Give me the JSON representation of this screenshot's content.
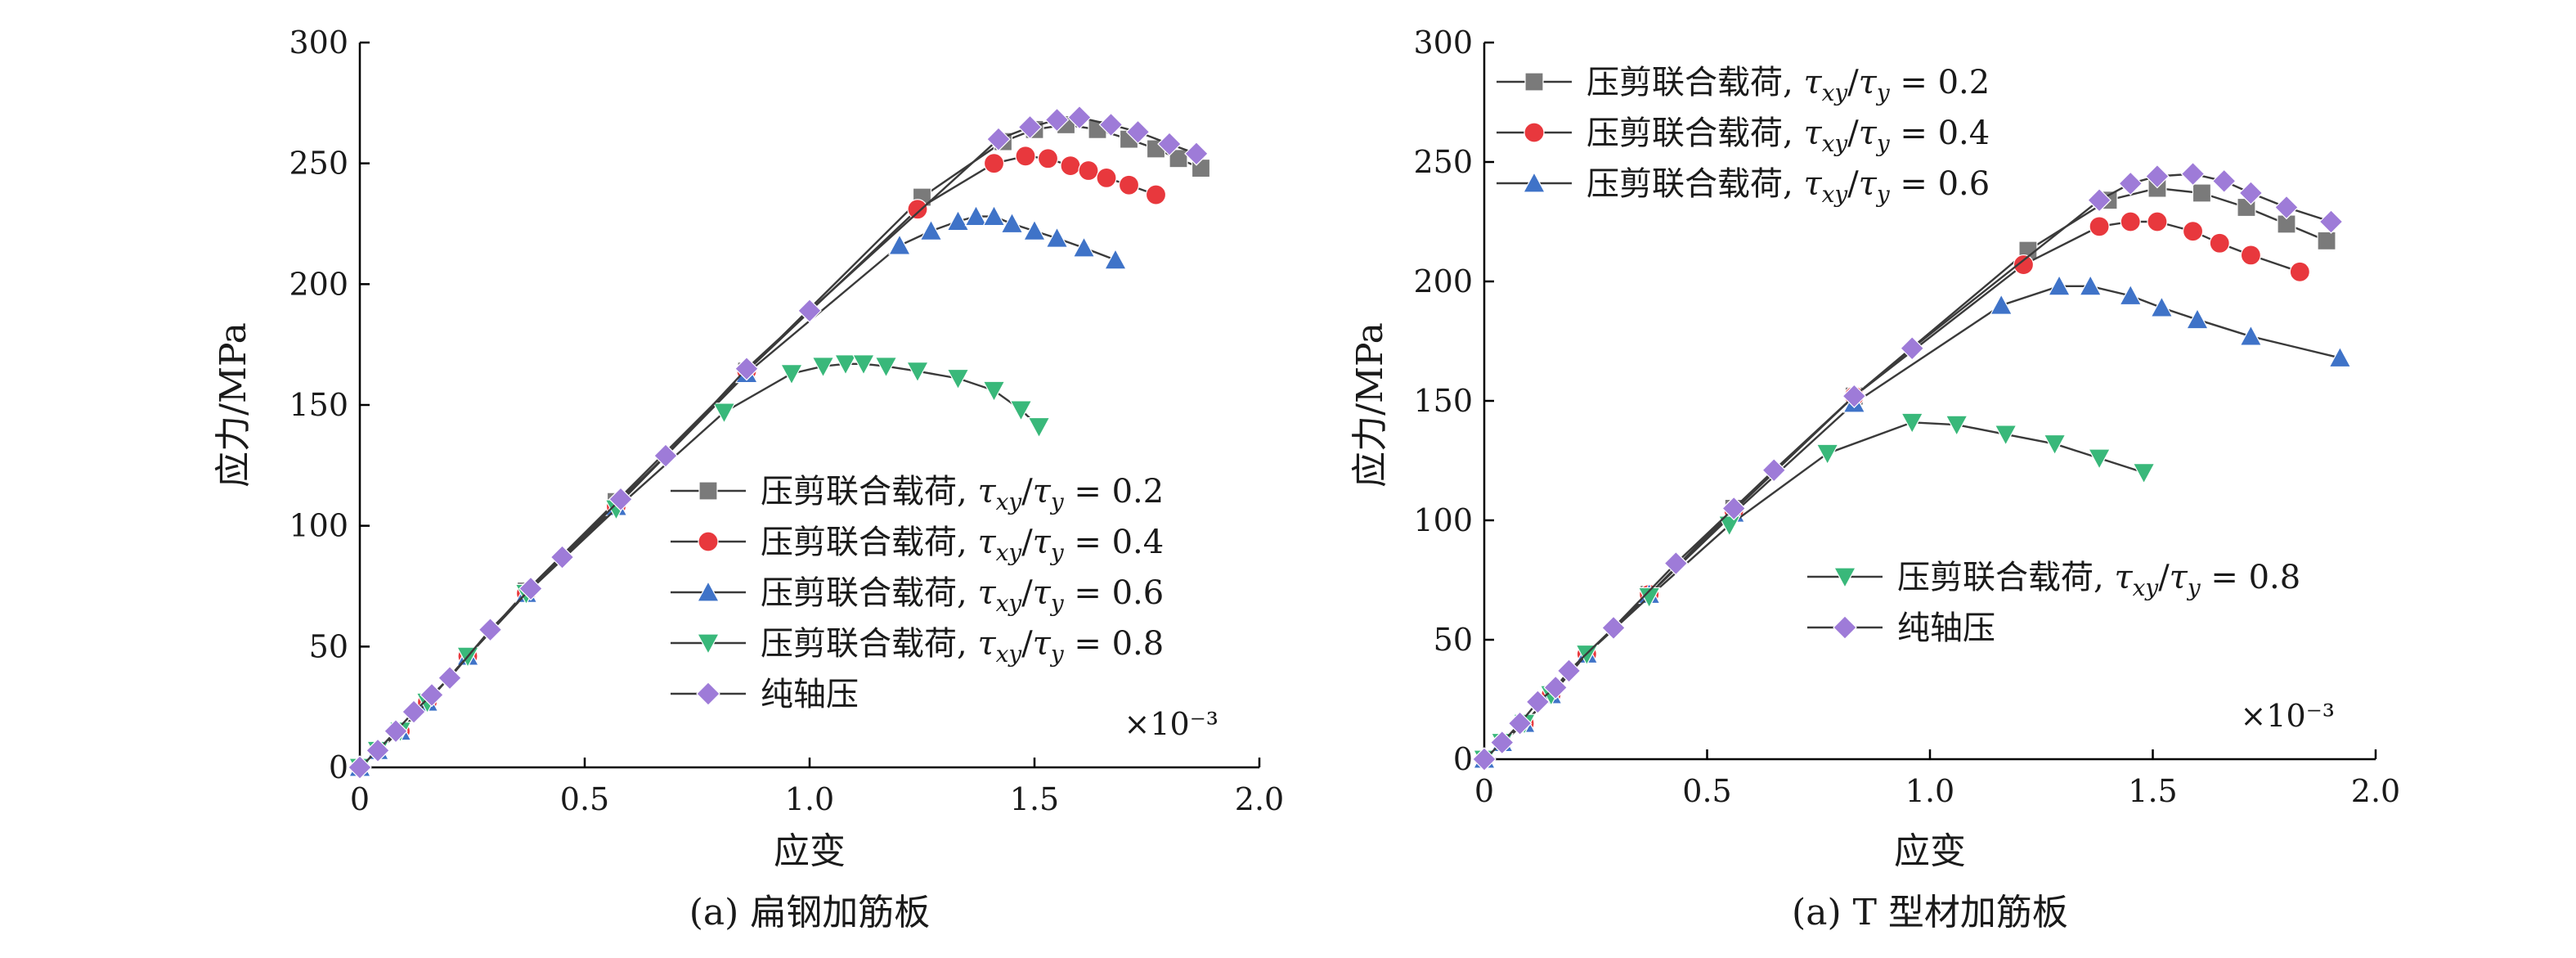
{
  "chart_data": [
    {
      "type": "line",
      "caption": "(a) 扁钢加筋板",
      "xlabel": "应变",
      "ylabel": "应力/MPa",
      "x_multiplier": "×10⁻³",
      "xlim": [
        0,
        2.0
      ],
      "ylim": [
        0,
        300
      ],
      "xticks": [
        "0",
        "0.5",
        "1.0",
        "1.5",
        "2.0"
      ],
      "yticks": [
        "0",
        "50",
        "100",
        "150",
        "200",
        "250",
        "300"
      ],
      "legend_position": "center-right",
      "series": [
        {
          "name": "压剪联合载荷, τxy/τy = 0.2",
          "color": "#7a7a7a",
          "marker": "square",
          "points": [
            [
              0,
              0
            ],
            [
              0.04,
              7
            ],
            [
              0.09,
              15
            ],
            [
              0.15,
              27
            ],
            [
              0.24,
              46
            ],
            [
              0.37,
              73
            ],
            [
              0.57,
              110
            ],
            [
              0.86,
              164
            ],
            [
              1.25,
              236
            ],
            [
              1.43,
              259
            ],
            [
              1.5,
              264
            ],
            [
              1.57,
              266
            ],
            [
              1.64,
              264
            ],
            [
              1.71,
              260
            ],
            [
              1.77,
              256
            ],
            [
              1.82,
              252
            ],
            [
              1.87,
              248
            ]
          ]
        },
        {
          "name": "压剪联合载荷, τxy/τy = 0.4",
          "color": "#e8383d",
          "marker": "circle",
          "points": [
            [
              0,
              0
            ],
            [
              0.04,
              7
            ],
            [
              0.09,
              15
            ],
            [
              0.15,
              27
            ],
            [
              0.24,
              46
            ],
            [
              0.37,
              72
            ],
            [
              0.57,
              108
            ],
            [
              0.86,
              164
            ],
            [
              1.24,
              231
            ],
            [
              1.41,
              250
            ],
            [
              1.48,
              253
            ],
            [
              1.53,
              252
            ],
            [
              1.58,
              249
            ],
            [
              1.62,
              247
            ],
            [
              1.66,
              244
            ],
            [
              1.71,
              241
            ],
            [
              1.77,
              237
            ]
          ]
        },
        {
          "name": "压剪联合载荷, τxy/τy = 0.6",
          "color": "#3f73c8",
          "marker": "triangle-up",
          "points": [
            [
              0,
              0
            ],
            [
              0.04,
              7
            ],
            [
              0.09,
              15
            ],
            [
              0.15,
              27
            ],
            [
              0.24,
              46
            ],
            [
              0.37,
              72
            ],
            [
              0.57,
              108
            ],
            [
              0.86,
              163
            ],
            [
              1.2,
              216
            ],
            [
              1.27,
              222
            ],
            [
              1.33,
              226
            ],
            [
              1.37,
              228
            ],
            [
              1.41,
              228
            ],
            [
              1.45,
              225
            ],
            [
              1.5,
              222
            ],
            [
              1.55,
              219
            ],
            [
              1.61,
              215
            ],
            [
              1.68,
              210
            ]
          ]
        },
        {
          "name": "压剪联合载荷, τxy/τy = 0.8",
          "color": "#39b87a",
          "marker": "triangle-down",
          "points": [
            [
              0,
              0
            ],
            [
              0.04,
              7
            ],
            [
              0.09,
              15
            ],
            [
              0.15,
              27
            ],
            [
              0.24,
              46
            ],
            [
              0.37,
              72
            ],
            [
              0.57,
              107
            ],
            [
              0.81,
              147
            ],
            [
              0.96,
              163
            ],
            [
              1.03,
              166
            ],
            [
              1.08,
              167
            ],
            [
              1.12,
              167
            ],
            [
              1.17,
              166
            ],
            [
              1.24,
              164
            ],
            [
              1.33,
              161
            ],
            [
              1.41,
              156
            ],
            [
              1.47,
              148
            ],
            [
              1.51,
              141
            ]
          ]
        },
        {
          "name": "纯轴压",
          "color": "#9e7bd8",
          "marker": "diamond",
          "points": [
            [
              0,
              0
            ],
            [
              0.04,
              7
            ],
            [
              0.08,
              15
            ],
            [
              0.12,
              23
            ],
            [
              0.16,
              30
            ],
            [
              0.2,
              37
            ],
            [
              0.29,
              57
            ],
            [
              0.38,
              74
            ],
            [
              0.45,
              87
            ],
            [
              0.58,
              111
            ],
            [
              0.68,
              129
            ],
            [
              0.86,
              165
            ],
            [
              1.0,
              189
            ],
            [
              1.42,
              260
            ],
            [
              1.49,
              265
            ],
            [
              1.55,
              268
            ],
            [
              1.6,
              269
            ],
            [
              1.67,
              266
            ],
            [
              1.73,
              263
            ],
            [
              1.8,
              258
            ],
            [
              1.86,
              254
            ]
          ]
        }
      ]
    },
    {
      "type": "line",
      "caption": "(a) T 型材加筋板",
      "xlabel": "应变",
      "ylabel": "应力/MPa",
      "x_multiplier": "×10⁻³",
      "xlim": [
        0,
        2.0
      ],
      "ylim": [
        0,
        300
      ],
      "xticks": [
        "0",
        "0.5",
        "1.0",
        "1.5",
        "2.0"
      ],
      "yticks": [
        "0",
        "50",
        "100",
        "150",
        "200",
        "250",
        "300"
      ],
      "legend_position": "top-left and center-right",
      "series": [
        {
          "name": "压剪联合载荷, τxy/τy = 0.2",
          "color": "#7a7a7a",
          "marker": "square",
          "points": [
            [
              0,
              0
            ],
            [
              0.04,
              7
            ],
            [
              0.09,
              15
            ],
            [
              0.15,
              27
            ],
            [
              0.23,
              44
            ],
            [
              0.37,
              69
            ],
            [
              0.56,
              105
            ],
            [
              0.83,
              152
            ],
            [
              1.22,
              213
            ],
            [
              1.4,
              234
            ],
            [
              1.51,
              239
            ],
            [
              1.61,
              237
            ],
            [
              1.71,
              231
            ],
            [
              1.8,
              224
            ],
            [
              1.89,
              217
            ]
          ]
        },
        {
          "name": "压剪联合载荷, τxy/τy = 0.4",
          "color": "#e8383d",
          "marker": "circle",
          "points": [
            [
              0,
              0
            ],
            [
              0.04,
              7
            ],
            [
              0.09,
              15
            ],
            [
              0.15,
              27
            ],
            [
              0.23,
              44
            ],
            [
              0.37,
              69
            ],
            [
              0.56,
              104
            ],
            [
              0.83,
              152
            ],
            [
              1.21,
              207
            ],
            [
              1.38,
              223
            ],
            [
              1.45,
              225
            ],
            [
              1.51,
              225
            ],
            [
              1.59,
              221
            ],
            [
              1.65,
              216
            ],
            [
              1.72,
              211
            ],
            [
              1.83,
              204
            ]
          ]
        },
        {
          "name": "压剪联合载荷, τxy/τy = 0.6",
          "color": "#3f73c8",
          "marker": "triangle-up",
          "points": [
            [
              0,
              0
            ],
            [
              0.04,
              7
            ],
            [
              0.09,
              15
            ],
            [
              0.15,
              27
            ],
            [
              0.23,
              44
            ],
            [
              0.37,
              69
            ],
            [
              0.56,
              103
            ],
            [
              0.83,
              149
            ],
            [
              1.16,
              190
            ],
            [
              1.29,
              198
            ],
            [
              1.36,
              198
            ],
            [
              1.45,
              194
            ],
            [
              1.52,
              189
            ],
            [
              1.6,
              184
            ],
            [
              1.72,
              177
            ],
            [
              1.92,
              168
            ]
          ]
        },
        {
          "name": "压剪联合载荷, τxy/τy = 0.8",
          "color": "#39b87a",
          "marker": "triangle-down",
          "points": [
            [
              0,
              0
            ],
            [
              0.04,
              7
            ],
            [
              0.09,
              15
            ],
            [
              0.15,
              27
            ],
            [
              0.23,
              44
            ],
            [
              0.37,
              68
            ],
            [
              0.55,
              98
            ],
            [
              0.77,
              128
            ],
            [
              0.96,
              141
            ],
            [
              1.06,
              140
            ],
            [
              1.17,
              136
            ],
            [
              1.28,
              132
            ],
            [
              1.38,
              126
            ],
            [
              1.48,
              120
            ]
          ]
        },
        {
          "name": "纯轴压",
          "color": "#9e7bd8",
          "marker": "diamond",
          "points": [
            [
              0,
              0
            ],
            [
              0.04,
              7
            ],
            [
              0.08,
              15
            ],
            [
              0.12,
              24
            ],
            [
              0.16,
              30
            ],
            [
              0.19,
              37
            ],
            [
              0.29,
              55
            ],
            [
              0.43,
              82
            ],
            [
              0.56,
              105
            ],
            [
              0.65,
              121
            ],
            [
              0.83,
              152
            ],
            [
              0.96,
              172
            ],
            [
              1.38,
              234
            ],
            [
              1.45,
              241
            ],
            [
              1.51,
              244
            ],
            [
              1.59,
              245
            ],
            [
              1.66,
              242
            ],
            [
              1.72,
              237
            ],
            [
              1.8,
              231
            ],
            [
              1.9,
              225
            ]
          ]
        }
      ]
    }
  ]
}
